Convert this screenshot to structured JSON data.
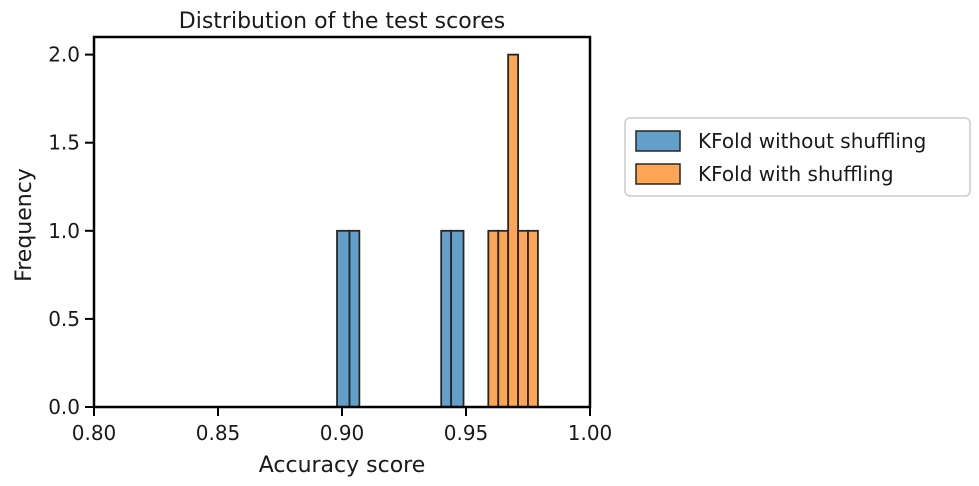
{
  "chart_data": {
    "type": "bar",
    "title": "Distribution of the test scores",
    "xlabel": "Accuracy score",
    "ylabel": "Frequency",
    "xlim": [
      0.8,
      1.0
    ],
    "ylim": [
      0.0,
      2.1
    ],
    "xticks": [
      "0.80",
      "0.85",
      "0.90",
      "0.95",
      "1.00"
    ],
    "yticks": [
      "0.0",
      "0.5",
      "1.0",
      "1.5",
      "2.0"
    ],
    "grid": false,
    "legend_position": "outside-right",
    "series": [
      {
        "name": "KFold without shuffling",
        "color": "#1f77b4",
        "bins": [
          {
            "x0": 0.898,
            "x1": 0.903,
            "count": 1
          },
          {
            "x0": 0.903,
            "x1": 0.907,
            "count": 1
          },
          {
            "x0": 0.94,
            "x1": 0.944,
            "count": 1
          },
          {
            "x0": 0.944,
            "x1": 0.949,
            "count": 1
          }
        ]
      },
      {
        "name": "KFold with shuffling",
        "color": "#ff7f0e",
        "bins": [
          {
            "x0": 0.959,
            "x1": 0.963,
            "count": 1
          },
          {
            "x0": 0.963,
            "x1": 0.967,
            "count": 1
          },
          {
            "x0": 0.967,
            "x1": 0.971,
            "count": 2
          },
          {
            "x0": 0.971,
            "x1": 0.975,
            "count": 1
          },
          {
            "x0": 0.975,
            "x1": 0.979,
            "count": 1
          }
        ]
      }
    ]
  }
}
